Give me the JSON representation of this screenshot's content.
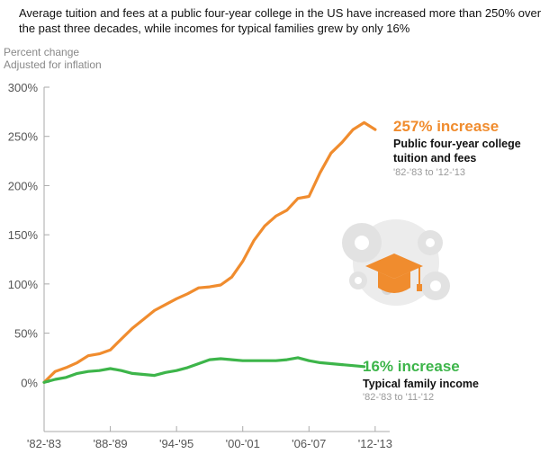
{
  "headline": "Average tuition and fees at a public four-year college in the US have increased more than 250% over the past three decades, while incomes for typical families grew by only 16%",
  "chart_data": {
    "type": "line",
    "ylabel": [
      "Percent change",
      "Adjusted for inflation"
    ],
    "ylim": [
      -50,
      300
    ],
    "yticks": [
      0,
      50,
      100,
      150,
      200,
      250,
      300
    ],
    "ytick_labels": [
      "0%",
      "50%",
      "100%",
      "150%",
      "200%",
      "250%",
      "300%"
    ],
    "xlim": [
      0,
      30.5
    ],
    "xticks": [
      0,
      6,
      12,
      18,
      24,
      30
    ],
    "xtick_labels": [
      "'82-'83",
      "'88-'89",
      "'94-'95",
      "'00-'01",
      "'06-'07",
      "'12-'13"
    ],
    "grid": false,
    "series": [
      {
        "name": "Public four-year college tuition and fees",
        "color": "#f08c2e",
        "x": [
          0,
          1,
          2,
          3,
          4,
          5,
          6,
          7,
          8,
          9,
          10,
          11,
          12,
          13,
          14,
          15,
          16,
          17,
          18,
          19,
          20,
          21,
          22,
          23,
          24,
          25,
          26,
          27,
          28,
          29,
          30
        ],
        "values": [
          0,
          11,
          15,
          20,
          27,
          29,
          33,
          44,
          55,
          64,
          73,
          79,
          85,
          90,
          96,
          97,
          99,
          107,
          123,
          144,
          159,
          169,
          175,
          187,
          189,
          213,
          233,
          244,
          257,
          264,
          257
        ]
      },
      {
        "name": "Typical family income",
        "color": "#3db54a",
        "x": [
          0,
          1,
          2,
          3,
          4,
          5,
          6,
          7,
          8,
          9,
          10,
          11,
          12,
          13,
          14,
          15,
          16,
          17,
          18,
          19,
          20,
          21,
          22,
          23,
          24,
          25,
          26,
          27,
          28,
          29
        ],
        "values": [
          0,
          3,
          5,
          9,
          11,
          12,
          14,
          12,
          9,
          8,
          7,
          10,
          12,
          15,
          19,
          23,
          24,
          23,
          22,
          22,
          22,
          22,
          23,
          25,
          22,
          20,
          19,
          18,
          17,
          16
        ]
      }
    ],
    "annotations": [
      {
        "label": "257% increase",
        "sub": [
          "Public four-year college",
          "tuition and fees"
        ],
        "range": "'82-'83 to '12-'13",
        "color": "#f08c2e"
      },
      {
        "label": "16% increase",
        "sub": [
          "Typical family income"
        ],
        "range": "'82-'83 to '11-'12",
        "color": "#3db54a"
      }
    ]
  },
  "icons": [
    "graduation-cap-icon",
    "gear-icon"
  ],
  "colors": {
    "orange": "#f08c2e",
    "green": "#3db54a",
    "icon_gray": "#e4e4e4",
    "axis": "#aaaaaa"
  }
}
